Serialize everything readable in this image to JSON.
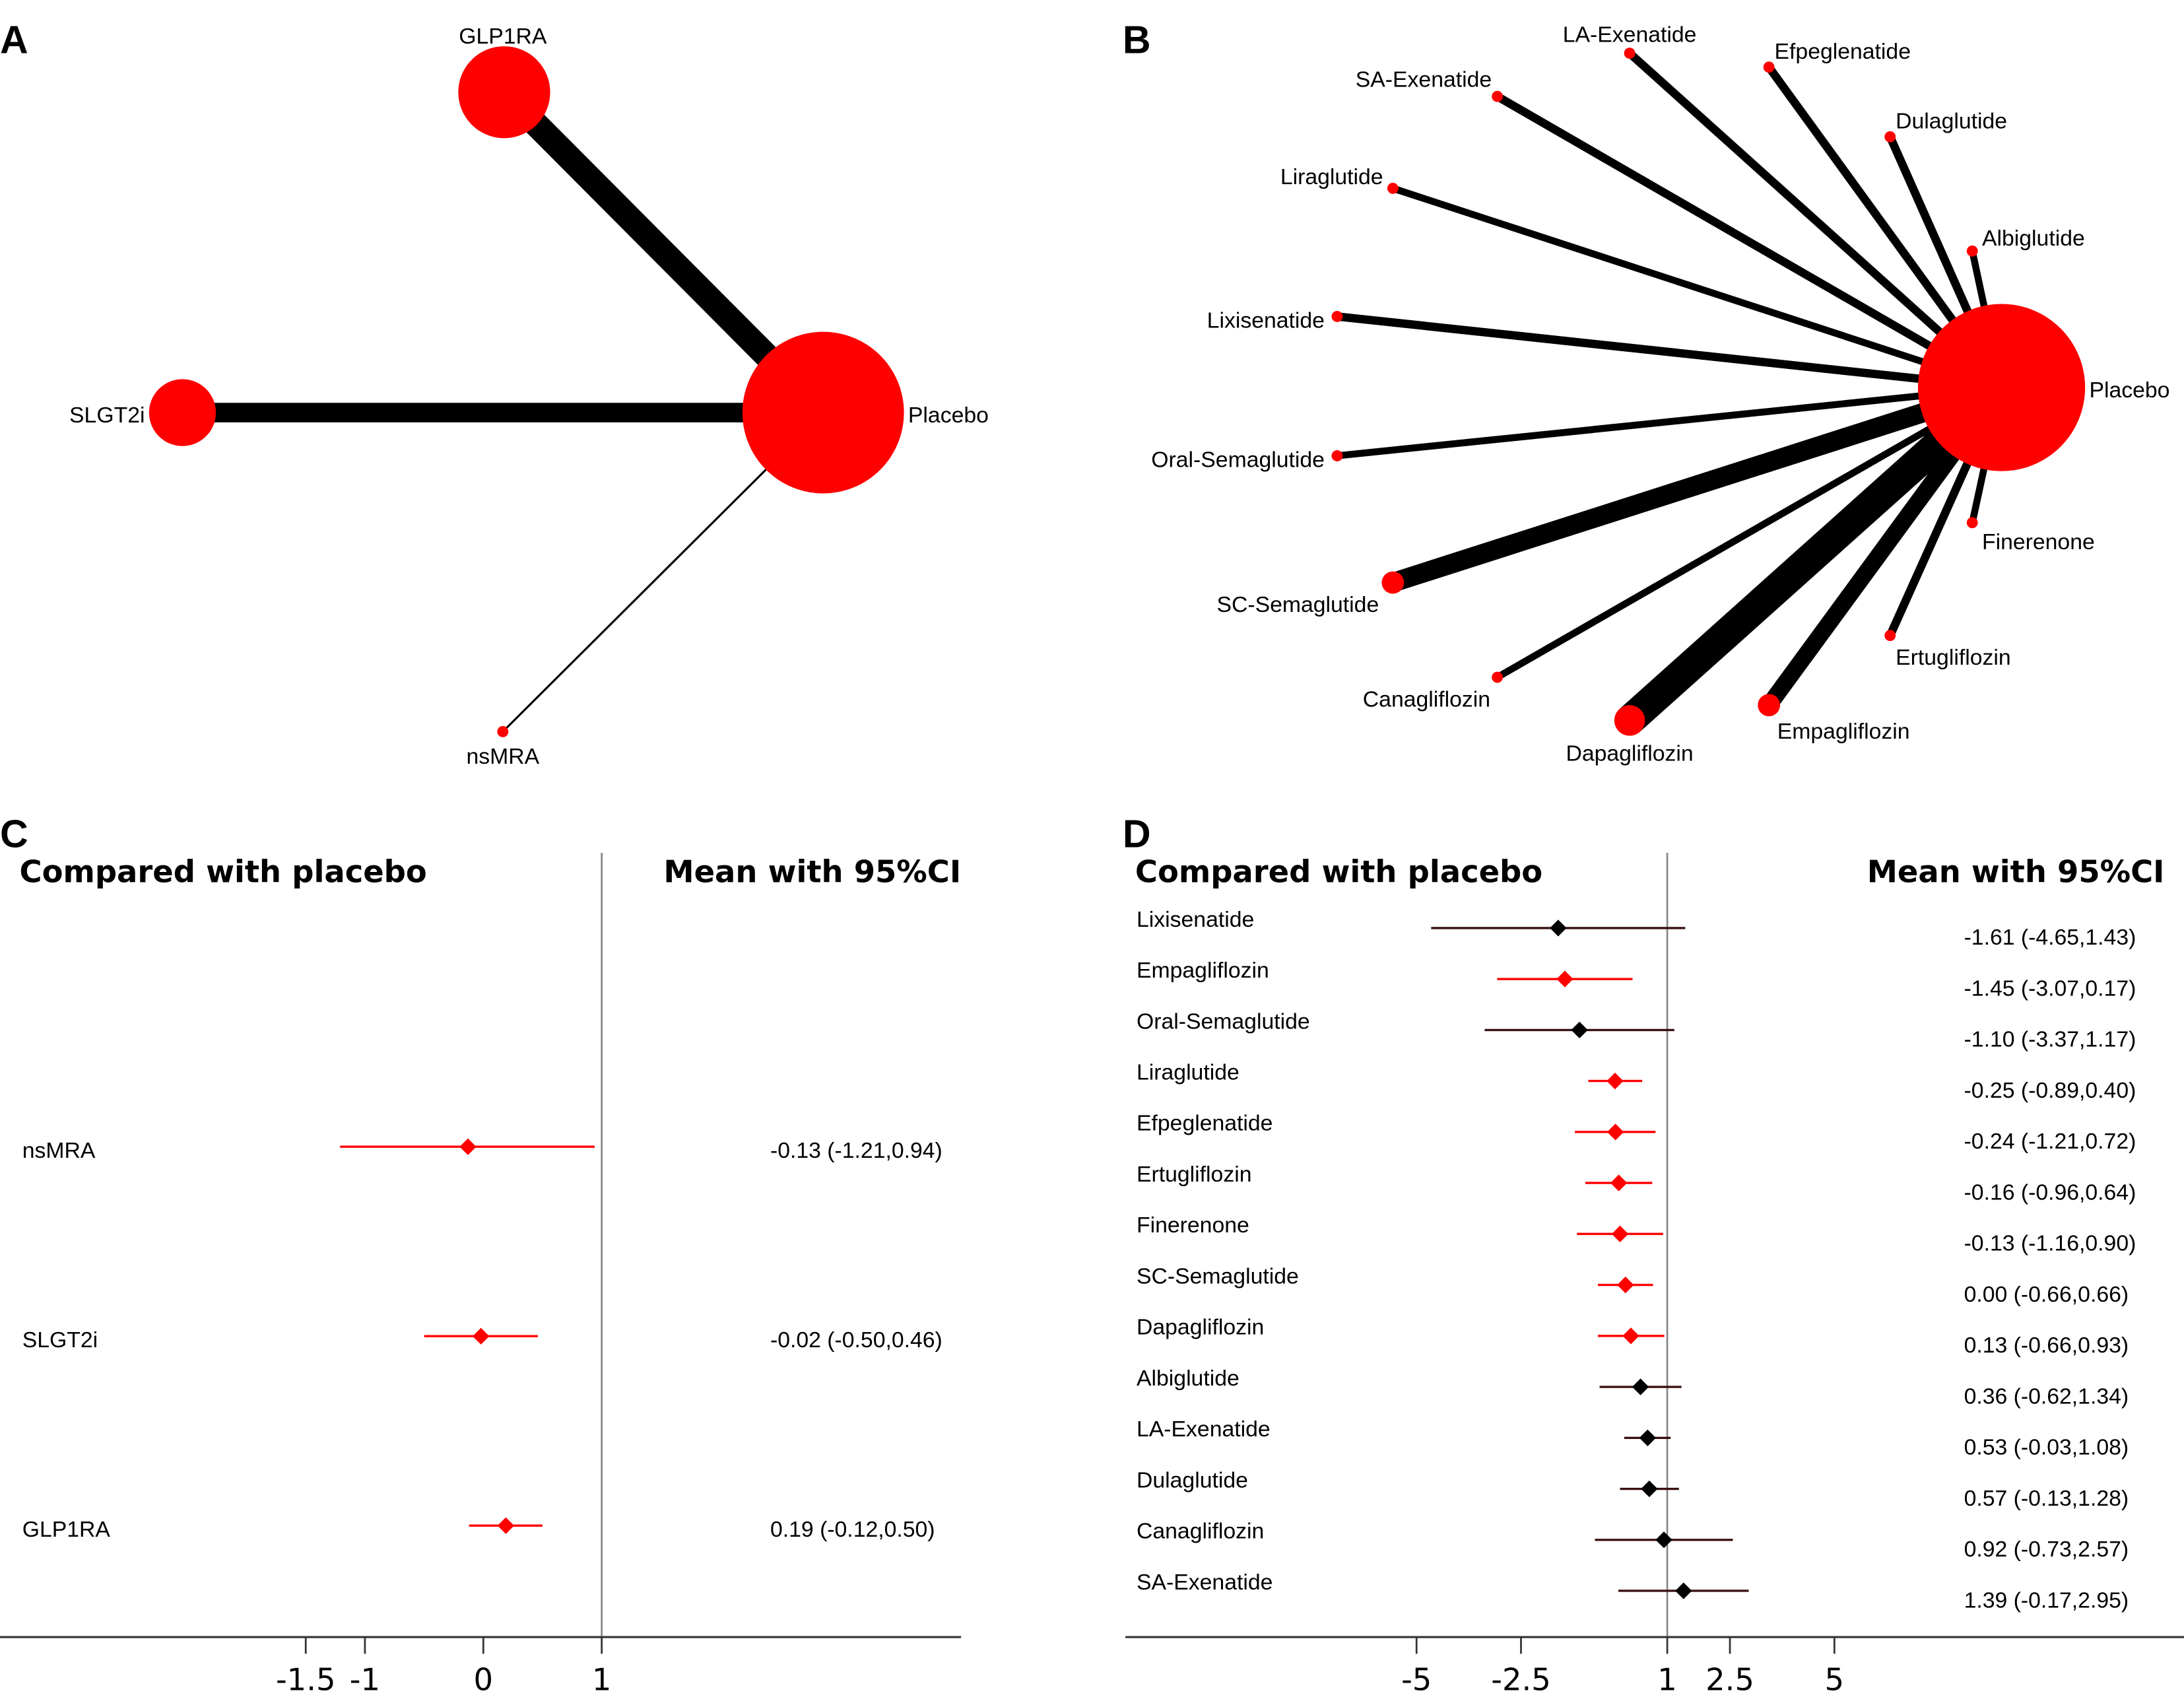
{
  "colors": {
    "node": "#ff0000",
    "edge": "#000000",
    "highlight": "#ff0000",
    "normal": "#000000",
    "refline": "#888888"
  },
  "panels": {
    "a": "A",
    "b": "B",
    "c": "C",
    "d": "D"
  },
  "network_a": {
    "nodes": [
      "Placebo",
      "GLP1RA",
      "SLGT2i",
      "nsMRA"
    ],
    "edges": [
      [
        "GLP1RA",
        "Placebo"
      ],
      [
        "SLGT2i",
        "Placebo"
      ],
      [
        "nsMRA",
        "Placebo"
      ]
    ]
  },
  "network_b": {
    "nodes": [
      "Placebo",
      "LA-Exenatide",
      "Efpeglenatide",
      "SA-Exenatide",
      "Dulaglutide",
      "Liraglutide",
      "Albiglutide",
      "Lixisenatide",
      "Oral-Semaglutide",
      "SC-Semaglutide",
      "Canagliflozin",
      "Dapagliflozin",
      "Empagliflozin",
      "Ertugliflozin",
      "Finerenone"
    ],
    "edges": [
      [
        "LA-Exenatide",
        "Placebo"
      ],
      [
        "Efpeglenatide",
        "Placebo"
      ],
      [
        "SA-Exenatide",
        "Placebo"
      ],
      [
        "Dulaglutide",
        "Placebo"
      ],
      [
        "Liraglutide",
        "Placebo"
      ],
      [
        "Albiglutide",
        "Placebo"
      ],
      [
        "Lixisenatide",
        "Placebo"
      ],
      [
        "Oral-Semaglutide",
        "Placebo"
      ],
      [
        "SC-Semaglutide",
        "Placebo"
      ],
      [
        "Canagliflozin",
        "Placebo"
      ],
      [
        "Dapagliflozin",
        "Placebo"
      ],
      [
        "Empagliflozin",
        "Placebo"
      ],
      [
        "Ertugliflozin",
        "Placebo"
      ],
      [
        "Finerenone",
        "Placebo"
      ]
    ]
  },
  "chart_data": [
    {
      "type": "forest",
      "header_left": "Compared with placebo",
      "header_right": "Mean with 95%CI",
      "reference_line": 1,
      "ticks": [
        "-1.5",
        "-1",
        "0",
        "1"
      ],
      "tick_values": [
        -1.5,
        -1,
        0,
        1
      ],
      "rows": [
        {
          "label": "nsMRA",
          "mean": -0.13,
          "lo": -1.21,
          "hi": 0.94,
          "text": "-0.13 (-1.21,0.94)",
          "highlight": true
        },
        {
          "label": "SLGT2i",
          "mean": -0.02,
          "lo": -0.5,
          "hi": 0.46,
          "text": "-0.02 (-0.50,0.46)",
          "highlight": true
        },
        {
          "label": "GLP1RA",
          "mean": 0.19,
          "lo": -0.12,
          "hi": 0.5,
          "text": "0.19 (-0.12,0.50)",
          "highlight": true
        }
      ]
    },
    {
      "type": "forest",
      "header_left": "Compared with placebo",
      "header_right": "Mean with 95%CI",
      "reference_line": 1,
      "ticks": [
        "-5",
        "-2.5",
        "1",
        "2.5",
        "5"
      ],
      "tick_values": [
        -5,
        -2.5,
        1,
        2.5,
        5
      ],
      "rows": [
        {
          "label": "Lixisenatide",
          "mean": -1.61,
          "lo": -4.65,
          "hi": 1.43,
          "text": "-1.61 (-4.65,1.43)",
          "highlight": false
        },
        {
          "label": "Empagliflozin",
          "mean": -1.45,
          "lo": -3.07,
          "hi": 0.17,
          "text": "-1.45 (-3.07,0.17)",
          "highlight": true
        },
        {
          "label": "Oral-Semaglutide",
          "mean": -1.1,
          "lo": -3.37,
          "hi": 1.17,
          "text": "-1.10 (-3.37,1.17)",
          "highlight": false
        },
        {
          "label": "Liraglutide",
          "mean": -0.25,
          "lo": -0.89,
          "hi": 0.4,
          "text": "-0.25 (-0.89,0.40)",
          "highlight": true
        },
        {
          "label": "Efpeglenatide",
          "mean": -0.24,
          "lo": -1.21,
          "hi": 0.72,
          "text": "-0.24 (-1.21,0.72)",
          "highlight": true
        },
        {
          "label": "Ertugliflozin",
          "mean": -0.16,
          "lo": -0.96,
          "hi": 0.64,
          "text": "-0.16 (-0.96,0.64)",
          "highlight": true
        },
        {
          "label": "Finerenone",
          "mean": -0.13,
          "lo": -1.16,
          "hi": 0.9,
          "text": "-0.13 (-1.16,0.90)",
          "highlight": true
        },
        {
          "label": "SC-Semaglutide",
          "mean": 0.0,
          "lo": -0.66,
          "hi": 0.66,
          "text": "0.00 (-0.66,0.66)",
          "highlight": true
        },
        {
          "label": "Dapagliflozin",
          "mean": 0.13,
          "lo": -0.66,
          "hi": 0.93,
          "text": "0.13 (-0.66,0.93)",
          "highlight": true
        },
        {
          "label": "Albiglutide",
          "mean": 0.36,
          "lo": -0.62,
          "hi": 1.34,
          "text": "0.36 (-0.62,1.34)",
          "highlight": false
        },
        {
          "label": "LA-Exenatide",
          "mean": 0.53,
          "lo": -0.03,
          "hi": 1.08,
          "text": "0.53 (-0.03,1.08)",
          "highlight": false
        },
        {
          "label": "Dulaglutide",
          "mean": 0.57,
          "lo": -0.13,
          "hi": 1.28,
          "text": "0.57 (-0.13,1.28)",
          "highlight": false
        },
        {
          "label": "Canagliflozin",
          "mean": 0.92,
          "lo": -0.73,
          "hi": 2.57,
          "text": "0.92 (-0.73,2.57)",
          "highlight": false
        },
        {
          "label": "SA-Exenatide",
          "mean": 1.39,
          "lo": -0.17,
          "hi": 2.95,
          "text": "1.39 (-0.17,2.95)",
          "highlight": false
        }
      ]
    }
  ]
}
